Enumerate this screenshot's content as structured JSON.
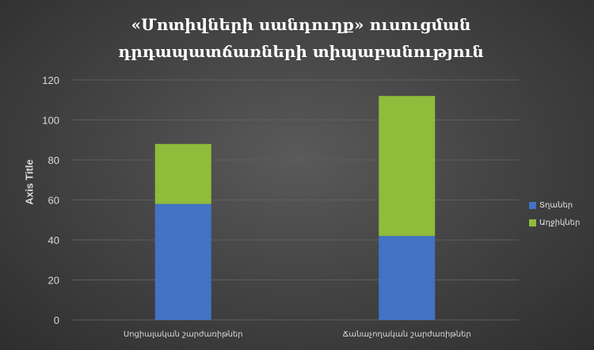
{
  "chart_data": {
    "type": "bar",
    "stacked": true,
    "title": "«Մոտիվների սանդուղք» ուսուցման դրդապատճառների տիպաբանություն",
    "xlabel": "",
    "ylabel": "Axis Title",
    "ylim": [
      0,
      120
    ],
    "yticks": [
      0,
      20,
      40,
      60,
      80,
      100,
      120
    ],
    "grid": true,
    "legend_position": "right",
    "categories": [
      "Սոցիալական շարժառիթներ",
      "Ճանաչողական շարժառիթներ"
    ],
    "series": [
      {
        "name": "Տղաներ",
        "values": [
          58,
          42
        ],
        "color": "#4472c4"
      },
      {
        "name": "Աղջիկներ",
        "values": [
          30,
          70
        ],
        "color": "#8fbc3b"
      }
    ]
  },
  "colors": {
    "grid": "#5e5e5e",
    "tick_text": "#d9d9d9",
    "background": "#404040"
  }
}
